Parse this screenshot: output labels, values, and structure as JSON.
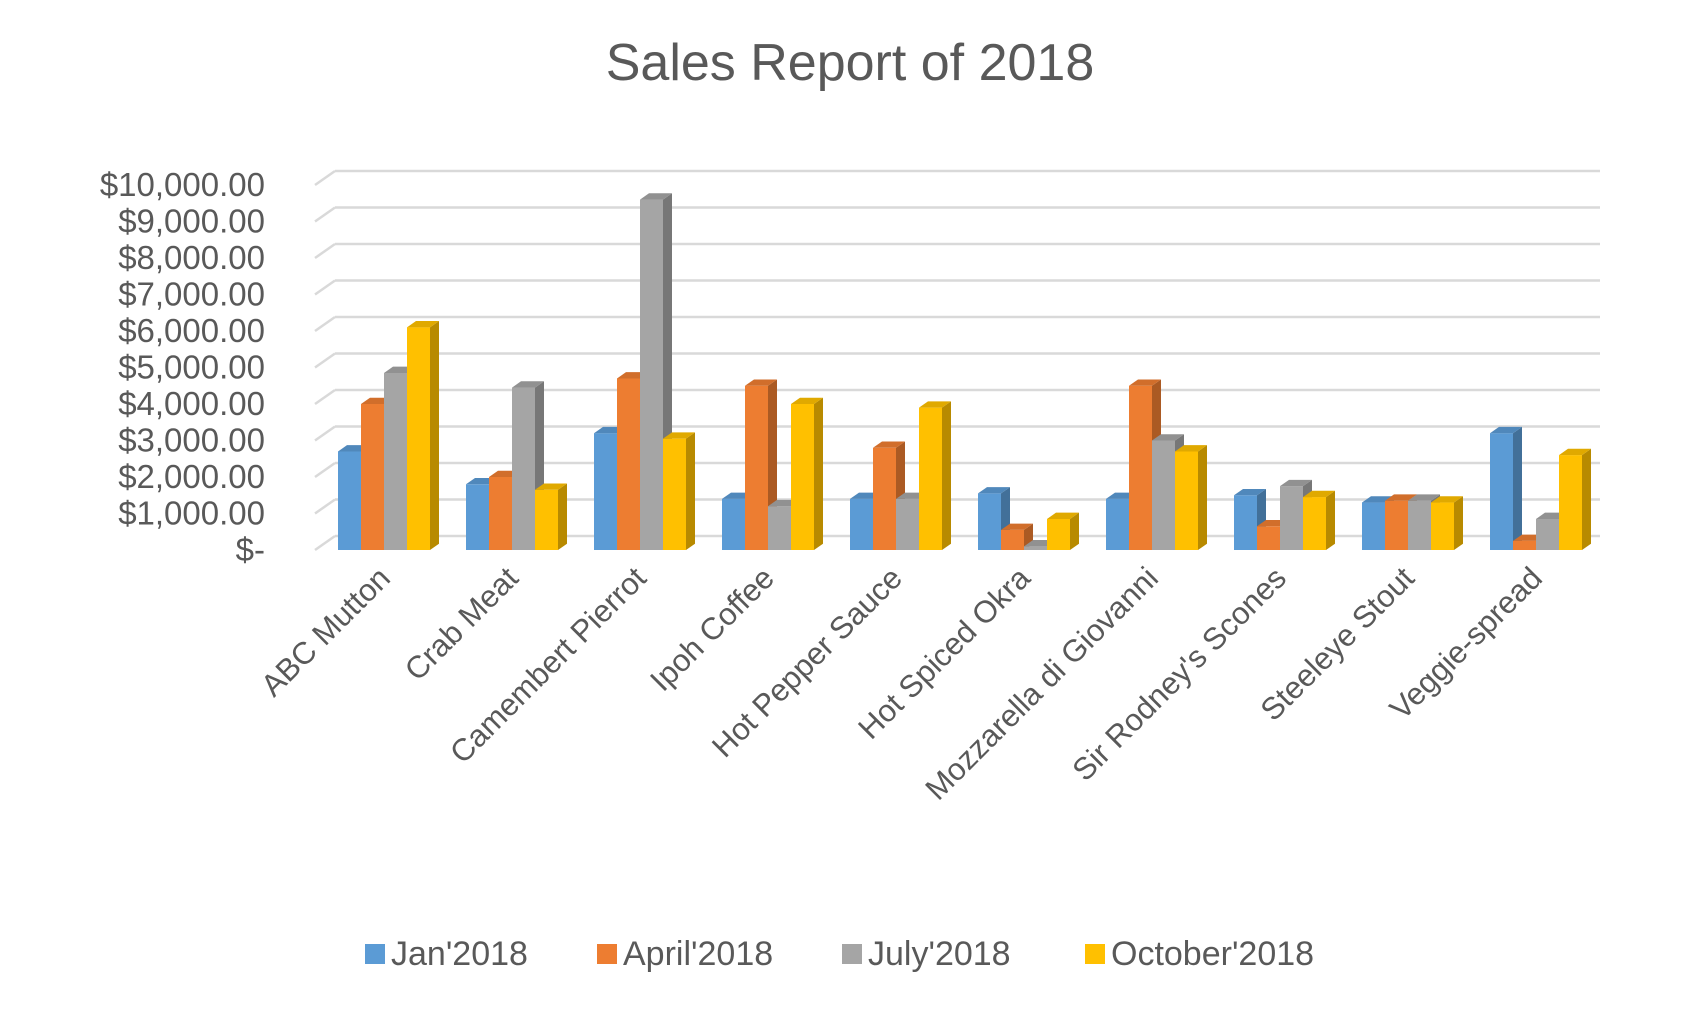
{
  "chart_data": {
    "type": "bar",
    "variant": "3d-clustered-column",
    "title": "Sales Report of 2018",
    "xlabel": "",
    "ylabel": "",
    "ylim": [
      0,
      10000
    ],
    "y_ticks": [
      0,
      1000,
      2000,
      3000,
      4000,
      5000,
      6000,
      7000,
      8000,
      9000,
      10000
    ],
    "y_tick_labels": [
      "$-",
      "$1,000.00",
      "$2,000.00",
      "$3,000.00",
      "$4,000.00",
      "$5,000.00",
      "$6,000.00",
      "$7,000.00",
      "$8,000.00",
      "$9,000.00",
      "$10,000.00"
    ],
    "grid": true,
    "legend_position": "bottom",
    "categories": [
      "ABC Mutton",
      "Crab Meat",
      "Camembert Pierrot",
      "Ipoh Coffee",
      "Hot Pepper Sauce",
      "Hot Spiced Okra",
      "Mozzarella di Giovanni",
      "Sir Rodney's Scones",
      "Steeleye Stout",
      "Veggie-spread"
    ],
    "series": [
      {
        "name": "Jan'2018",
        "color": "#5b9bd5",
        "values": [
          2700,
          1800,
          3200,
          1400,
          1400,
          1550,
          1400,
          1500,
          1300,
          3200
        ]
      },
      {
        "name": "April'2018",
        "color": "#ed7d31",
        "values": [
          4000,
          2000,
          4700,
          4500,
          2800,
          550,
          4500,
          650,
          1350,
          250
        ]
      },
      {
        "name": "July'2018",
        "color": "#a5a5a5",
        "values": [
          4850,
          4450,
          9600,
          1200,
          1400,
          100,
          3000,
          1750,
          1350,
          850
        ]
      },
      {
        "name": "October'2018",
        "color": "#ffc000",
        "values": [
          6100,
          1650,
          3050,
          4000,
          3900,
          850,
          2700,
          1450,
          1300,
          2600
        ]
      }
    ]
  }
}
